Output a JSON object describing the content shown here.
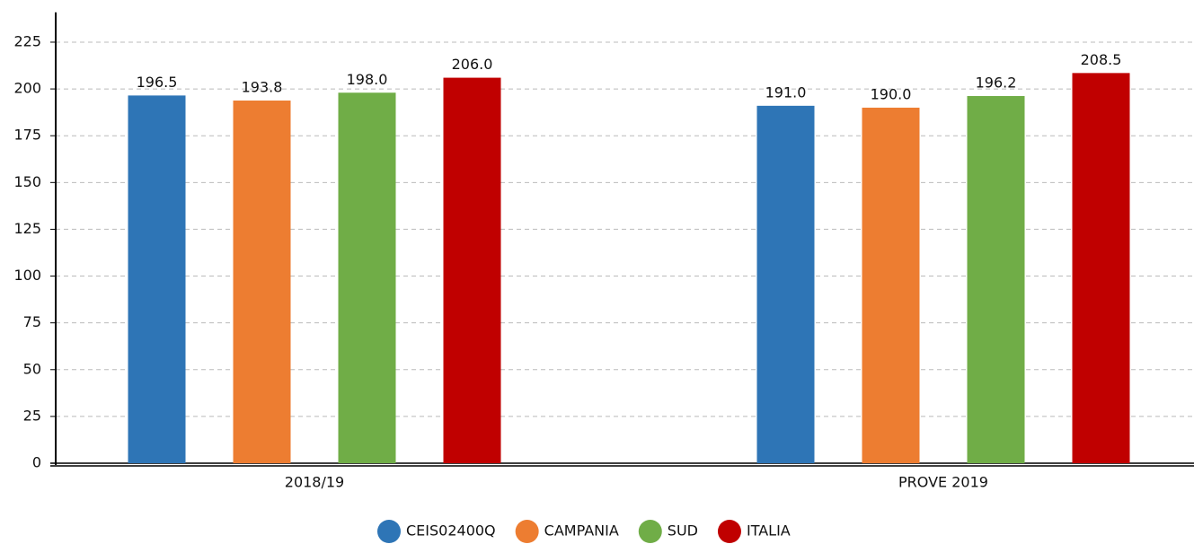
{
  "chart_data": {
    "type": "bar",
    "categories": [
      "2018/19",
      "PROVE 2019"
    ],
    "series": [
      {
        "name": "CEIS02400Q",
        "color": "#2e75b6",
        "values": [
          196.5,
          191
        ],
        "value_labels": [
          "196.5",
          "191.0"
        ]
      },
      {
        "name": "CAMPANIA",
        "color": "#ed7d31",
        "values": [
          193.8,
          190
        ],
        "value_labels": [
          "193.8",
          "190.0"
        ]
      },
      {
        "name": "SUD",
        "color": "#70ad47",
        "values": [
          198,
          196.2
        ],
        "value_labels": [
          "198.0",
          "196.2"
        ]
      },
      {
        "name": "ITALIA",
        "color": "#c00000",
        "values": [
          206,
          208.5
        ],
        "value_labels": [
          "206.0",
          "208.5"
        ]
      }
    ],
    "ylim": [
      0,
      240
    ],
    "yticks": [
      0,
      25,
      50,
      75,
      100,
      125,
      150,
      175,
      200,
      225
    ],
    "grid": true,
    "legend": "bottom"
  }
}
